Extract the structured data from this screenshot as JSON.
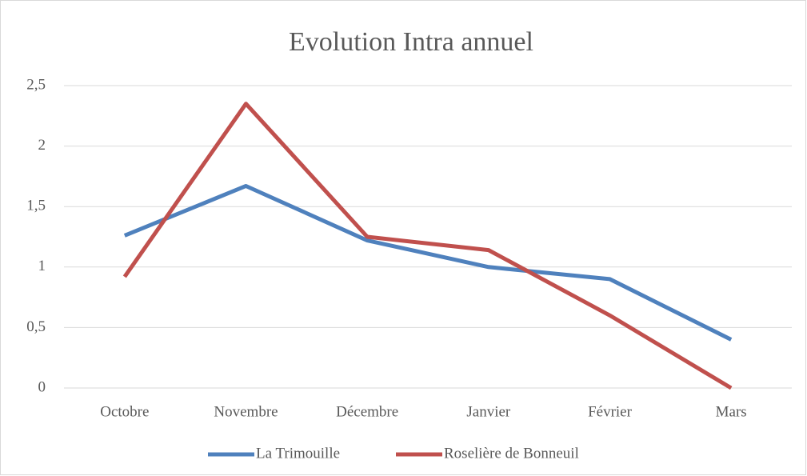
{
  "chart_data": {
    "type": "line",
    "title": "Evolution Intra annuel",
    "categories": [
      "Octobre",
      "Novembre",
      "Décembre",
      "Janvier",
      "Février",
      "Mars"
    ],
    "series": [
      {
        "name": "La Trimouille",
        "color": "#4f81bd",
        "values": [
          1.26,
          1.67,
          1.22,
          1.0,
          0.9,
          0.4
        ]
      },
      {
        "name": "Roselière de Bonneuil",
        "color": "#c0504d",
        "values": [
          0.92,
          2.35,
          1.25,
          1.14,
          0.6,
          0
        ]
      }
    ],
    "ylim": [
      0,
      2.5
    ],
    "yticks": [
      0,
      {
        "value": 0.5,
        "label": "0,5"
      },
      1,
      {
        "value": 1.5,
        "label": "1,5"
      },
      2,
      {
        "value": 2.5,
        "label": "2,5"
      }
    ],
    "grid": true,
    "legend": "bottom"
  }
}
